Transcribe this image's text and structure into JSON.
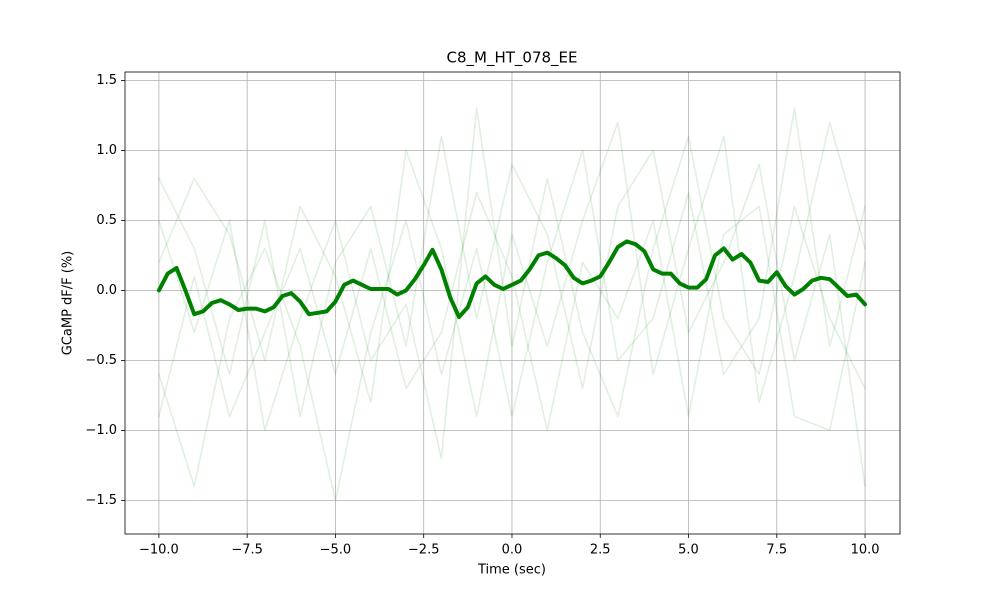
{
  "chart_data": {
    "type": "line",
    "title": "C8_M_HT_078_EE",
    "xlabel": "Time (sec)",
    "ylabel": "GCaMP dF/F (%)",
    "xlim": [
      -10.96,
      10.99
    ],
    "ylim": [
      -1.74,
      1.56
    ],
    "xticks": [
      {
        "value": -10,
        "label": "−10.0"
      },
      {
        "value": -7.5,
        "label": "−7.5"
      },
      {
        "value": -5,
        "label": "−5.0"
      },
      {
        "value": -2.5,
        "label": "−2.5"
      },
      {
        "value": 0,
        "label": "0.0"
      },
      {
        "value": 2.5,
        "label": "2.5"
      },
      {
        "value": 5,
        "label": "5.0"
      },
      {
        "value": 7.5,
        "label": "7.5"
      },
      {
        "value": 10,
        "label": "10.0"
      }
    ],
    "yticks": [
      {
        "value": -1.5,
        "label": "−1.5"
      },
      {
        "value": -1,
        "label": "−1.0"
      },
      {
        "value": -0.5,
        "label": "−0.5"
      },
      {
        "value": 0,
        "label": "0.0"
      },
      {
        "value": 0.5,
        "label": "0.5"
      },
      {
        "value": 1,
        "label": "1.0"
      },
      {
        "value": 1.5,
        "label": "1.5"
      }
    ],
    "grid": true,
    "series": [
      {
        "color": "#008000",
        "alpha": 0.12,
        "x": [
          -10,
          -9,
          -8,
          -7,
          -6,
          -5,
          -4,
          -3,
          -2,
          -1,
          0,
          1,
          2,
          3,
          4,
          5,
          6,
          7,
          8,
          9,
          10
        ],
        "values": [
          0.8,
          0.3,
          -0.6,
          0.5,
          -0.9,
          0.2,
          0.6,
          -0.4,
          1.1,
          -0.2,
          0.9,
          0.4,
          -0.7,
          0.6,
          1.0,
          -0.3,
          0.2,
          0.9,
          -0.5,
          0.4,
          -1.4
        ]
      },
      {
        "color": "#008000",
        "alpha": 0.12,
        "x": [
          -10,
          -9,
          -8,
          -7,
          -6,
          -5,
          -4,
          -3,
          -2,
          -1,
          0,
          1,
          2,
          3,
          4,
          5,
          6,
          7,
          8,
          9,
          10
        ],
        "values": [
          -0.6,
          -1.4,
          -0.2,
          0.3,
          -0.4,
          -1.5,
          -0.3,
          0.5,
          -0.6,
          0.3,
          -0.9,
          0.2,
          1.0,
          -0.5,
          -0.2,
          0.7,
          -0.6,
          -0.2,
          1.3,
          -0.4,
          0.6
        ]
      },
      {
        "color": "#008000",
        "alpha": 0.12,
        "x": [
          -10,
          -9,
          -8,
          -7,
          -6,
          -5,
          -4,
          -3,
          -2,
          -1,
          0,
          1,
          2,
          3,
          4,
          5,
          6,
          7,
          8,
          9,
          10
        ],
        "values": [
          0.2,
          0.8,
          0.4,
          -0.5,
          0.6,
          0.1,
          -0.8,
          1.0,
          0.3,
          -0.9,
          0.4,
          -0.4,
          0.5,
          1.2,
          -0.6,
          0.3,
          1.1,
          -0.8,
          0.1,
          1.2,
          0.3
        ]
      },
      {
        "color": "#008000",
        "alpha": 0.12,
        "x": [
          -10,
          -9,
          -8,
          -7,
          -6,
          -5,
          -4,
          -3,
          -2,
          -1,
          0,
          1,
          2,
          3,
          4,
          5,
          6,
          7,
          8,
          9,
          10
        ],
        "values": [
          -0.9,
          0.1,
          -0.9,
          -0.3,
          0.3,
          -0.6,
          0.3,
          -0.7,
          -0.3,
          0.7,
          0.1,
          -1.0,
          0.2,
          -0.2,
          0.5,
          -0.9,
          0.4,
          0.6,
          -0.9,
          -1.0,
          0.2
        ]
      },
      {
        "color": "#008000",
        "alpha": 0.12,
        "x": [
          -10,
          -9,
          -8,
          -7,
          -6,
          -5,
          -4,
          -3,
          -2,
          -1,
          0,
          1,
          2,
          3,
          4,
          5,
          6,
          7,
          8,
          9,
          10
        ],
        "values": [
          0.5,
          -0.3,
          0.5,
          -1.0,
          -0.2,
          0.5,
          -0.5,
          -0.1,
          -1.2,
          1.3,
          -0.4,
          0.8,
          -0.3,
          -0.9,
          0.3,
          1.1,
          -0.2,
          -0.6,
          0.6,
          -0.2,
          -0.7
        ]
      },
      {
        "color": "#008000",
        "alpha": 1,
        "width": 4,
        "x": [
          -10,
          -9.75,
          -9.5,
          -9.25,
          -9,
          -8.75,
          -8.5,
          -8.25,
          -8,
          -7.75,
          -7.5,
          -7.25,
          -7,
          -6.75,
          -6.5,
          -6.25,
          -6,
          -5.75,
          -5.5,
          -5.25,
          -5,
          -4.75,
          -4.5,
          -4.25,
          -4,
          -3.75,
          -3.5,
          -3.25,
          -3,
          -2.75,
          -2.5,
          -2.25,
          -2,
          -1.75,
          -1.5,
          -1.25,
          -1,
          -0.75,
          -0.5,
          -0.25,
          0,
          0.25,
          0.5,
          0.75,
          1,
          1.25,
          1.5,
          1.75,
          2,
          2.25,
          2.5,
          2.75,
          3,
          3.25,
          3.5,
          3.75,
          4,
          4.25,
          4.5,
          4.75,
          5,
          5.25,
          5.5,
          5.75,
          6,
          6.25,
          6.5,
          6.75,
          7,
          7.25,
          7.5,
          7.75,
          8,
          8.25,
          8.5,
          8.75,
          9,
          9.25,
          9.5,
          9.75,
          10
        ],
        "values": [
          0,
          0.12,
          0.16,
          0,
          -0.17,
          -0.15,
          -0.09,
          -0.07,
          -0.1,
          -0.14,
          -0.13,
          -0.13,
          -0.15,
          -0.12,
          -0.04,
          -0.02,
          -0.08,
          -0.17,
          -0.16,
          -0.15,
          -0.08,
          0.04,
          0.07,
          0.04,
          0.01,
          0.01,
          0.01,
          -0.03,
          0,
          0.08,
          0.18,
          0.29,
          0.15,
          -0.05,
          -0.19,
          -0.12,
          0.05,
          0.1,
          0.04,
          0.01,
          0.04,
          0.07,
          0.15,
          0.25,
          0.27,
          0.23,
          0.18,
          0.09,
          0.05,
          0.07,
          0.1,
          0.2,
          0.31,
          0.35,
          0.33,
          0.28,
          0.15,
          0.12,
          0.12,
          0.05,
          0.02,
          0.02,
          0.08,
          0.25,
          0.3,
          0.22,
          0.26,
          0.2,
          0.07,
          0.06,
          0.13,
          0.03,
          -0.03,
          0.01,
          0.07,
          0.09,
          0.08,
          0.02,
          -0.04,
          -0.03,
          -0.1
        ]
      }
    ]
  }
}
